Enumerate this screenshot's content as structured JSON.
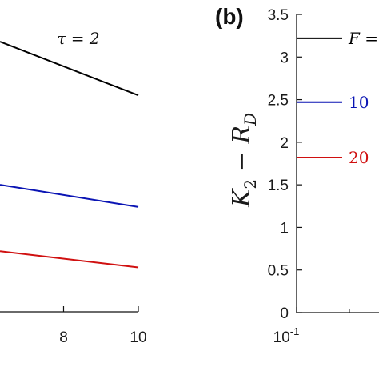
{
  "chart_data": [
    {
      "type": "line",
      "panel": "a",
      "title": "τ = 2",
      "x_ticks": [
        "8",
        "10"
      ],
      "xlim": [
        6.3,
        10
      ],
      "ylim": [
        0,
        3.5
      ],
      "series": [
        {
          "color": "#000000",
          "x": [
            6.3,
            10
          ],
          "y": [
            3.18,
            2.55
          ]
        },
        {
          "color": "#0a14b4",
          "x": [
            6.3,
            10
          ],
          "y": [
            1.5,
            1.24
          ]
        },
        {
          "color": "#d01010",
          "x": [
            6.3,
            10
          ],
          "y": [
            0.72,
            0.53
          ]
        }
      ]
    },
    {
      "type": "line",
      "panel": "b",
      "panel_label": "(b)",
      "ylabel": "K₂ − R_D",
      "y_ticks": [
        "0",
        "0.5",
        "1",
        "1.5",
        "2",
        "2.5",
        "3",
        "3.5"
      ],
      "ylim": [
        0,
        3.5
      ],
      "xscale": "log",
      "x_tick_label": "10",
      "x_tick_exponent": "-1",
      "series": [
        {
          "name": "F = ",
          "label_italic": true,
          "color": "#000000",
          "value": 3.22
        },
        {
          "name": "10",
          "color": "#0a14b4",
          "value": 2.47
        },
        {
          "name": "20",
          "color": "#d01010",
          "value": 1.82
        }
      ]
    }
  ]
}
